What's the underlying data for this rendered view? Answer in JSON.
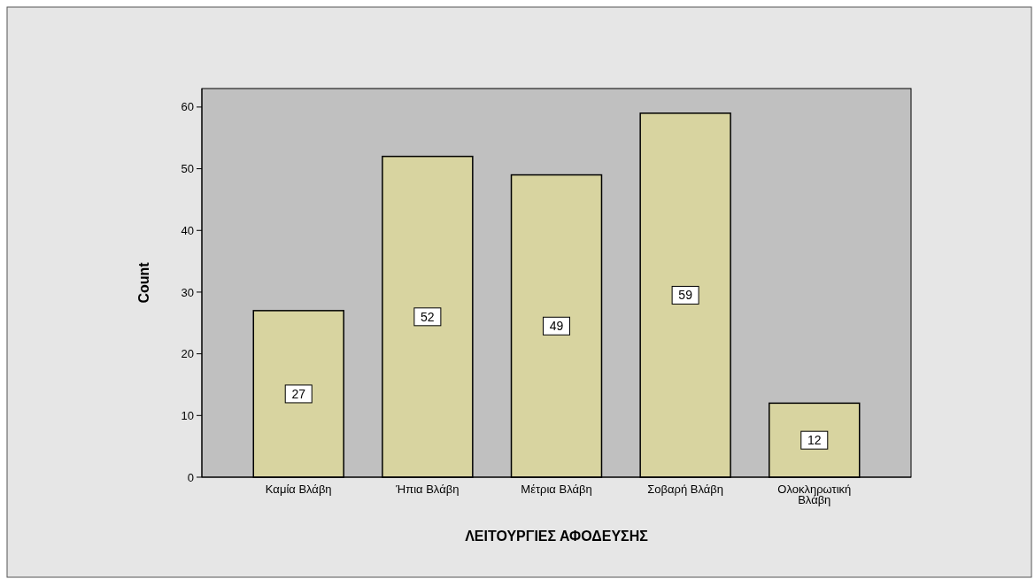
{
  "chart_data": {
    "type": "bar",
    "xlabel": "ΛΕΙΤΟΥΡΓΙΕΣ ΑΦΟΔΕΥΣΗΣ",
    "ylabel": "Count",
    "categories": [
      "Καμία Βλάβη",
      "Ήπια Βλάβη",
      "Μέτρια Βλάβη",
      "Σοβαρή Βλάβη",
      "Ολοκληρωτική Βλάβη"
    ],
    "values": [
      27,
      52,
      49,
      59,
      12
    ],
    "color": "#d8d4a0",
    "ylim": [
      0,
      63
    ],
    "yticks": [
      0,
      10,
      20,
      30,
      40,
      50,
      60
    ],
    "data_labels": true,
    "grid": false
  }
}
